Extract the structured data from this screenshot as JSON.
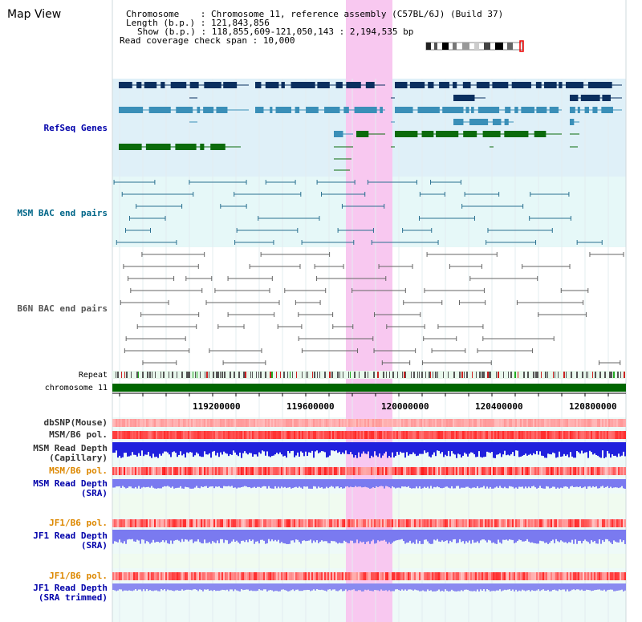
{
  "title": "Map View",
  "header": {
    "chromosome_label": "Chromosome    : ",
    "chromosome_value": "Chromosome 11, reference assembly (C57BL/6J) (Build 37)",
    "length_label": "Length (b.p.) : ",
    "length_value": "121,843,856",
    "show_label": "Show (b.p.) : ",
    "show_value": "118,855,609-121,050,143 : 2,194,535 bp",
    "coverage_label": "Read coverage check span : ",
    "coverage_value": "10,000"
  },
  "tracks": {
    "refseq": "RefSeq Genes",
    "msm_bac": "MSM BAC end pairs",
    "b6n_bac": "B6N BAC end pairs",
    "repeat": "Repeat",
    "chromosome": "chromosome 11",
    "dbsnp": "dbSNP(Mouse)",
    "msm_b6_pol_1": "MSM/B6 pol.",
    "msm_depth_cap_1": "MSM Read Depth",
    "msm_depth_cap_2": "(Capillary)",
    "msm_b6_pol_2": "MSM/B6 pol.",
    "msm_depth_sra_1": "MSM Read Depth",
    "msm_depth_sra_2": "(SRA)",
    "jf1_b6_pol_1": "JF1/B6 pol.",
    "jf1_depth_sra_1": "JF1 Read Depth",
    "jf1_depth_sra_2": "(SRA)",
    "jf1_b6_pol_2": "JF1/B6 pol.",
    "jf1_depth_trim_1": "JF1 Read Depth",
    "jf1_depth_trim_2": "(SRA trimmed)"
  },
  "axis_ticks": [
    "119200000",
    "119600000",
    "120000000",
    "120400000",
    "120800000"
  ],
  "colors": {
    "label_blue": "#0000aa",
    "label_teal": "#006688",
    "label_orange": "#dd8800",
    "gene_dark": "#0a2f5f",
    "gene_mid": "#3a8fb8",
    "gene_green": "#0b6b0b",
    "highlight": "#f8c8f0",
    "chromosome_bar": "#006600"
  }
}
